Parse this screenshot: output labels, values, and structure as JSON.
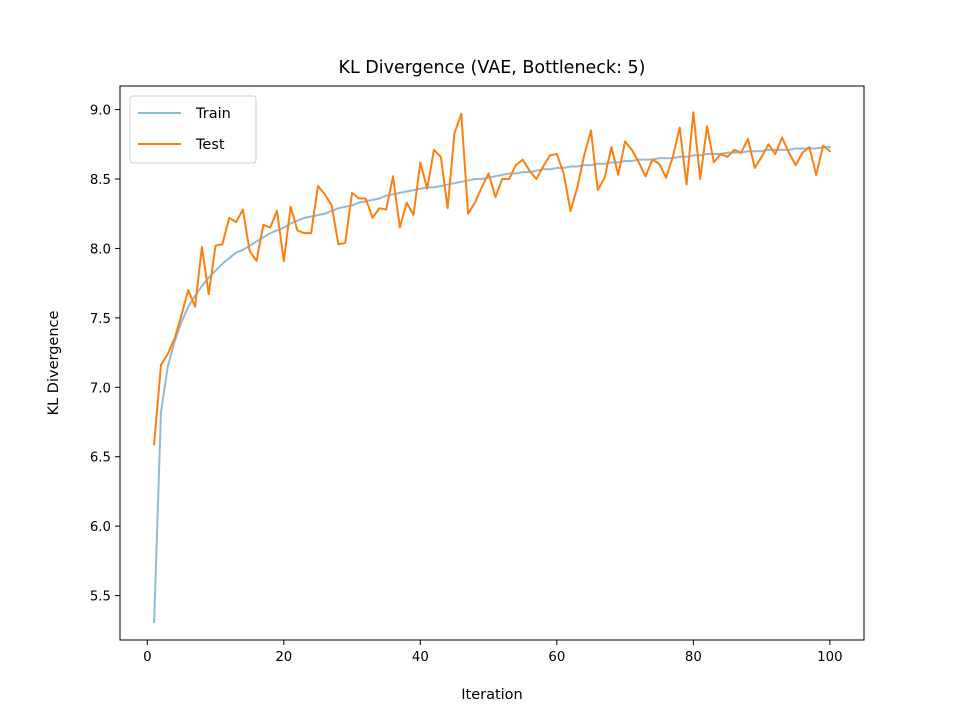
{
  "chart_data": {
    "type": "line",
    "title": "KL Divergence (VAE, Bottleneck: 5)",
    "xlabel": "Iteration",
    "ylabel": "KL Divergence",
    "xlim": [
      -4,
      105
    ],
    "ylim": [
      5.18,
      9.17
    ],
    "xticks": [
      0,
      20,
      40,
      60,
      80,
      100
    ],
    "yticks": [
      5.5,
      6.0,
      6.5,
      7.0,
      7.5,
      8.0,
      8.5,
      9.0
    ],
    "grid": false,
    "legend": "top-left",
    "series": [
      {
        "name": "Train",
        "color": "#8fbbd9",
        "x": [
          1,
          2,
          3,
          4,
          5,
          6,
          7,
          8,
          9,
          10,
          11,
          12,
          13,
          14,
          15,
          16,
          17,
          18,
          19,
          20,
          21,
          22,
          23,
          24,
          25,
          26,
          27,
          28,
          29,
          30,
          31,
          32,
          33,
          34,
          35,
          36,
          37,
          38,
          39,
          40,
          41,
          42,
          43,
          44,
          45,
          46,
          47,
          48,
          49,
          50,
          51,
          52,
          53,
          54,
          55,
          56,
          57,
          58,
          59,
          60,
          61,
          62,
          63,
          64,
          65,
          66,
          67,
          68,
          69,
          70,
          71,
          72,
          73,
          74,
          75,
          76,
          77,
          78,
          79,
          80,
          81,
          82,
          83,
          84,
          85,
          86,
          87,
          88,
          89,
          90,
          91,
          92,
          93,
          94,
          95,
          96,
          97,
          98,
          99,
          100
        ],
        "values": [
          5.31,
          6.82,
          7.15,
          7.33,
          7.47,
          7.58,
          7.66,
          7.73,
          7.79,
          7.84,
          7.89,
          7.93,
          7.97,
          7.99,
          8.02,
          8.05,
          8.08,
          8.11,
          8.13,
          8.15,
          8.18,
          8.2,
          8.22,
          8.23,
          8.24,
          8.25,
          8.27,
          8.29,
          8.3,
          8.31,
          8.33,
          8.34,
          8.35,
          8.36,
          8.38,
          8.39,
          8.4,
          8.41,
          8.42,
          8.43,
          8.44,
          8.44,
          8.45,
          8.46,
          8.47,
          8.48,
          8.49,
          8.5,
          8.5,
          8.51,
          8.52,
          8.53,
          8.54,
          8.54,
          8.55,
          8.55,
          8.56,
          8.57,
          8.57,
          8.58,
          8.58,
          8.59,
          8.59,
          8.6,
          8.6,
          8.61,
          8.61,
          8.62,
          8.62,
          8.63,
          8.63,
          8.64,
          8.64,
          8.64,
          8.65,
          8.65,
          8.65,
          8.66,
          8.66,
          8.67,
          8.67,
          8.68,
          8.68,
          8.68,
          8.69,
          8.69,
          8.69,
          8.7,
          8.7,
          8.7,
          8.71,
          8.71,
          8.71,
          8.71,
          8.72,
          8.72,
          8.72,
          8.72,
          8.73,
          8.73
        ]
      },
      {
        "name": "Test",
        "color": "#ff7f0e",
        "x": [
          1,
          2,
          3,
          4,
          5,
          6,
          7,
          8,
          9,
          10,
          11,
          12,
          13,
          14,
          15,
          16,
          17,
          18,
          19,
          20,
          21,
          22,
          23,
          24,
          25,
          26,
          27,
          28,
          29,
          30,
          31,
          32,
          33,
          34,
          35,
          36,
          37,
          38,
          39,
          40,
          41,
          42,
          43,
          44,
          45,
          46,
          47,
          48,
          49,
          50,
          51,
          52,
          53,
          54,
          55,
          56,
          57,
          58,
          59,
          60,
          61,
          62,
          63,
          64,
          65,
          66,
          67,
          68,
          69,
          70,
          71,
          72,
          73,
          74,
          75,
          76,
          77,
          78,
          79,
          80,
          81,
          82,
          83,
          84,
          85,
          86,
          87,
          88,
          89,
          90,
          91,
          92,
          93,
          94,
          95,
          96,
          97,
          98,
          99,
          100
        ],
        "values": [
          6.59,
          7.16,
          7.24,
          7.35,
          7.52,
          7.7,
          7.58,
          8.01,
          7.67,
          8.02,
          8.03,
          8.22,
          8.19,
          8.28,
          7.98,
          7.91,
          8.17,
          8.15,
          8.27,
          7.91,
          8.3,
          8.13,
          8.11,
          8.11,
          8.45,
          8.39,
          8.31,
          8.03,
          8.04,
          8.4,
          8.36,
          8.36,
          8.22,
          8.29,
          8.28,
          8.52,
          8.15,
          8.33,
          8.24,
          8.62,
          8.43,
          8.71,
          8.66,
          8.29,
          8.83,
          8.97,
          8.25,
          8.33,
          8.44,
          8.54,
          8.37,
          8.5,
          8.5,
          8.6,
          8.64,
          8.56,
          8.5,
          8.59,
          8.67,
          8.68,
          8.54,
          8.27,
          8.44,
          8.67,
          8.85,
          8.42,
          8.51,
          8.73,
          8.53,
          8.77,
          8.71,
          8.62,
          8.52,
          8.64,
          8.61,
          8.51,
          8.66,
          8.87,
          8.46,
          8.98,
          8.5,
          8.88,
          8.62,
          8.68,
          8.66,
          8.71,
          8.69,
          8.79,
          8.58,
          8.66,
          8.75,
          8.68,
          8.8,
          8.69,
          8.6,
          8.69,
          8.73,
          8.53,
          8.74,
          8.7
        ]
      }
    ]
  }
}
